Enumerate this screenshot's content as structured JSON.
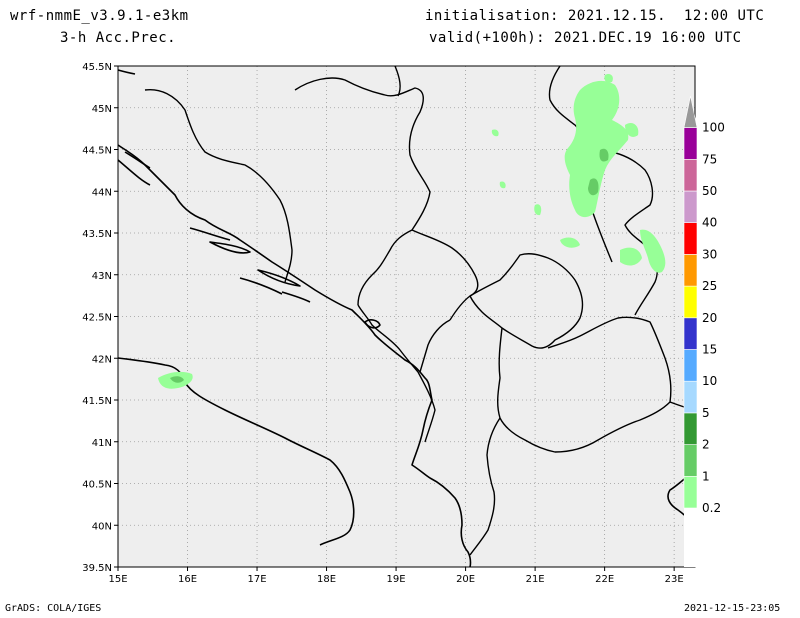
{
  "header": {
    "model": "wrf-nmmE_v3.9.1-e3km",
    "field": "3-h Acc.Prec.",
    "init": "initialisation: 2021.12.15.  12:00 UTC",
    "valid": "valid(+100h): 2021.DEC.19 16:00 UTC"
  },
  "footer": {
    "left": "GrADS: COLA/IGES",
    "right": "2021-12-15-23:05"
  },
  "map": {
    "lat_labels": [
      "45.5N",
      "45N",
      "44.5N",
      "44N",
      "43.5N",
      "43N",
      "42.5N",
      "42N",
      "41.5N",
      "41N",
      "40.5N",
      "40N",
      "39.5N"
    ],
    "lon_labels": [
      "15E",
      "16E",
      "17E",
      "18E",
      "19E",
      "20E",
      "21E",
      "22E",
      "23E"
    ],
    "lat_range": [
      39.5,
      45.5
    ],
    "lon_range": [
      15,
      23.3
    ],
    "ocean_color": "#eeeeee",
    "grid": "dotted"
  },
  "colorbar": {
    "levels": [
      {
        "label": "0.2",
        "color": "#97ff97"
      },
      {
        "label": "1",
        "color": "#66cc66"
      },
      {
        "label": "2",
        "color": "#339933"
      },
      {
        "label": "5",
        "color": "#a6d9ff"
      },
      {
        "label": "10",
        "color": "#55aaff"
      },
      {
        "label": "15",
        "color": "#3333cc"
      },
      {
        "label": "20",
        "color": "#ffff00"
      },
      {
        "label": "25",
        "color": "#ff9900"
      },
      {
        "label": "30",
        "color": "#ff0000"
      },
      {
        "label": "40",
        "color": "#cc99cc"
      },
      {
        "label": "50",
        "color": "#cc6699"
      },
      {
        "label": "75",
        "color": "#990099"
      },
      {
        "label": "100",
        "color": "#999999"
      }
    ]
  }
}
